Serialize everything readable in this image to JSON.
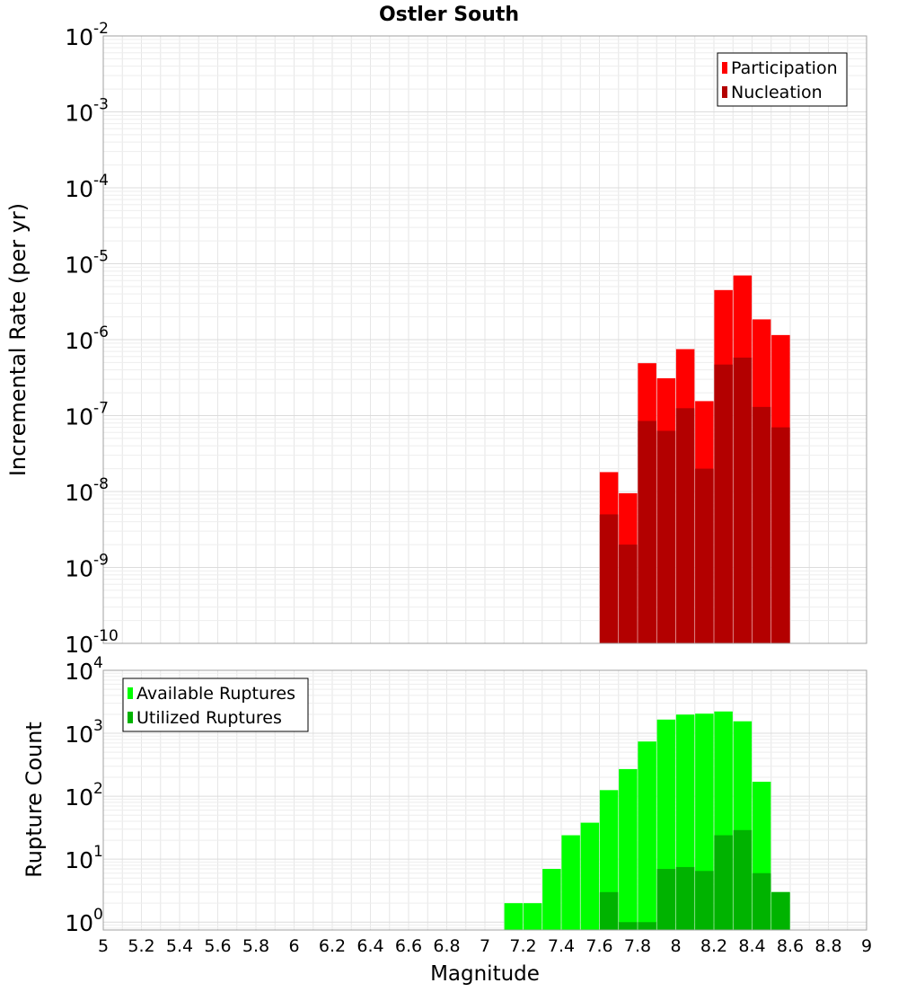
{
  "chart_data": [
    {
      "type": "bar",
      "title": "Ostler South",
      "xlabel": "",
      "ylabel": "Incremental Rate (per yr)",
      "y_scale": "log",
      "xlim": [
        5,
        9
      ],
      "ylim": [
        1e-10,
        0.01
      ],
      "y_ticks": [
        {
          "base": "10",
          "exp": "-2",
          "value": 0.01
        },
        {
          "base": "10",
          "exp": "-3",
          "value": 0.001
        },
        {
          "base": "10",
          "exp": "-4",
          "value": 0.0001
        },
        {
          "base": "10",
          "exp": "-5",
          "value": 1e-05
        },
        {
          "base": "10",
          "exp": "-6",
          "value": 1e-06
        },
        {
          "base": "10",
          "exp": "-7",
          "value": 1e-07
        },
        {
          "base": "10",
          "exp": "-8",
          "value": 1e-08
        },
        {
          "base": "10",
          "exp": "-9",
          "value": 1e-09
        },
        {
          "base": "10",
          "exp": "-10",
          "value": 1e-10
        }
      ],
      "grid": true,
      "legend_position": "top-right",
      "x": [
        7.65,
        7.75,
        7.85,
        7.95,
        8.05,
        8.15,
        8.25,
        8.35,
        8.45,
        8.55
      ],
      "series": [
        {
          "name": "Participation",
          "color": "#ff0000",
          "values": [
            1.8e-08,
            9.5e-09,
            4.9e-07,
            3.1e-07,
            7.5e-07,
            1.55e-07,
            4.5e-06,
            7e-06,
            1.85e-06,
            1.15e-06
          ]
        },
        {
          "name": "Nucleation",
          "color": "#b30000",
          "values": [
            5e-09,
            2e-09,
            8.5e-08,
            6.3e-08,
            1.25e-07,
            2e-08,
            4.7e-07,
            5.8e-07,
            1.3e-07,
            7e-08
          ]
        }
      ]
    },
    {
      "type": "bar",
      "title": "",
      "xlabel": "Magnitude",
      "ylabel": "Rupture Count",
      "y_scale": "log",
      "xlim": [
        5,
        9
      ],
      "ylim": [
        0.75,
        10000
      ],
      "x_ticks": [
        "5",
        "5.2",
        "5.4",
        "5.6",
        "5.8",
        "6",
        "6.2",
        "6.4",
        "6.6",
        "6.8",
        "7",
        "7.2",
        "7.4",
        "7.6",
        "7.8",
        "8",
        "8.2",
        "8.4",
        "8.6",
        "8.8",
        "9"
      ],
      "y_ticks": [
        {
          "base": "10",
          "exp": "4",
          "value": 10000
        },
        {
          "base": "10",
          "exp": "3",
          "value": 1000
        },
        {
          "base": "10",
          "exp": "2",
          "value": 100
        },
        {
          "base": "10",
          "exp": "1",
          "value": 10
        },
        {
          "base": "10",
          "exp": "0",
          "value": 1
        }
      ],
      "grid": true,
      "legend_position": "top-left",
      "x": [
        7.15,
        7.25,
        7.35,
        7.45,
        7.55,
        7.65,
        7.75,
        7.85,
        7.95,
        8.05,
        8.15,
        8.25,
        8.35,
        8.45,
        8.55
      ],
      "series": [
        {
          "name": "Available Ruptures",
          "color": "#00ff00",
          "values": [
            2,
            2,
            7,
            24,
            38,
            125,
            270,
            740,
            1650,
            1980,
            2050,
            2220,
            1550,
            170,
            3
          ]
        },
        {
          "name": "Utilized Ruptures",
          "color": "#00b300",
          "values": [
            null,
            null,
            null,
            null,
            null,
            3,
            1,
            1,
            7,
            7.5,
            6.5,
            24,
            29,
            6,
            3
          ]
        }
      ]
    }
  ]
}
